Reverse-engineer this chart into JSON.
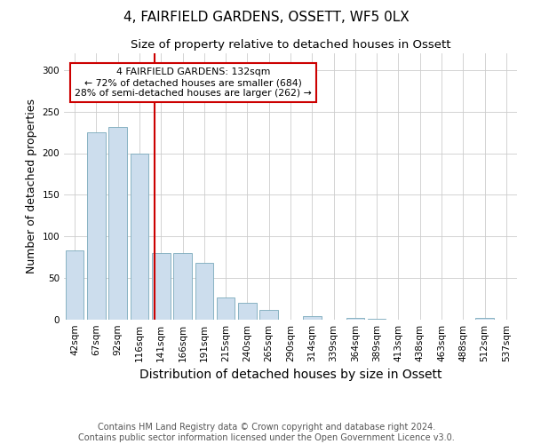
{
  "title": "4, FAIRFIELD GARDENS, OSSETT, WF5 0LX",
  "subtitle": "Size of property relative to detached houses in Ossett",
  "xlabel": "Distribution of detached houses by size in Ossett",
  "ylabel": "Number of detached properties",
  "bar_labels": [
    "42sqm",
    "67sqm",
    "92sqm",
    "116sqm",
    "141sqm",
    "166sqm",
    "191sqm",
    "215sqm",
    "240sqm",
    "265sqm",
    "290sqm",
    "314sqm",
    "339sqm",
    "364sqm",
    "389sqm",
    "413sqm",
    "438sqm",
    "463sqm",
    "488sqm",
    "512sqm",
    "537sqm"
  ],
  "bar_values": [
    83,
    225,
    232,
    200,
    80,
    80,
    68,
    27,
    20,
    12,
    0,
    4,
    0,
    2,
    1,
    0,
    0,
    0,
    0,
    2,
    0
  ],
  "bar_color": "#ccdded",
  "bar_edge_color": "#7aaabb",
  "annotation_text": "4 FAIRFIELD GARDENS: 132sqm\n← 72% of detached houses are smaller (684)\n28% of semi-detached houses are larger (262) →",
  "annotation_box_color": "#ffffff",
  "annotation_box_edge": "#cc0000",
  "vline_color": "#cc0000",
  "grid_color": "#cccccc",
  "footer": "Contains HM Land Registry data © Crown copyright and database right 2024.\nContains public sector information licensed under the Open Government Licence v3.0.",
  "ylim": [
    0,
    320
  ],
  "title_fontsize": 11,
  "subtitle_fontsize": 9.5,
  "xlabel_fontsize": 10,
  "ylabel_fontsize": 9,
  "tick_fontsize": 7.5,
  "footer_fontsize": 7,
  "vline_x": 3.68
}
